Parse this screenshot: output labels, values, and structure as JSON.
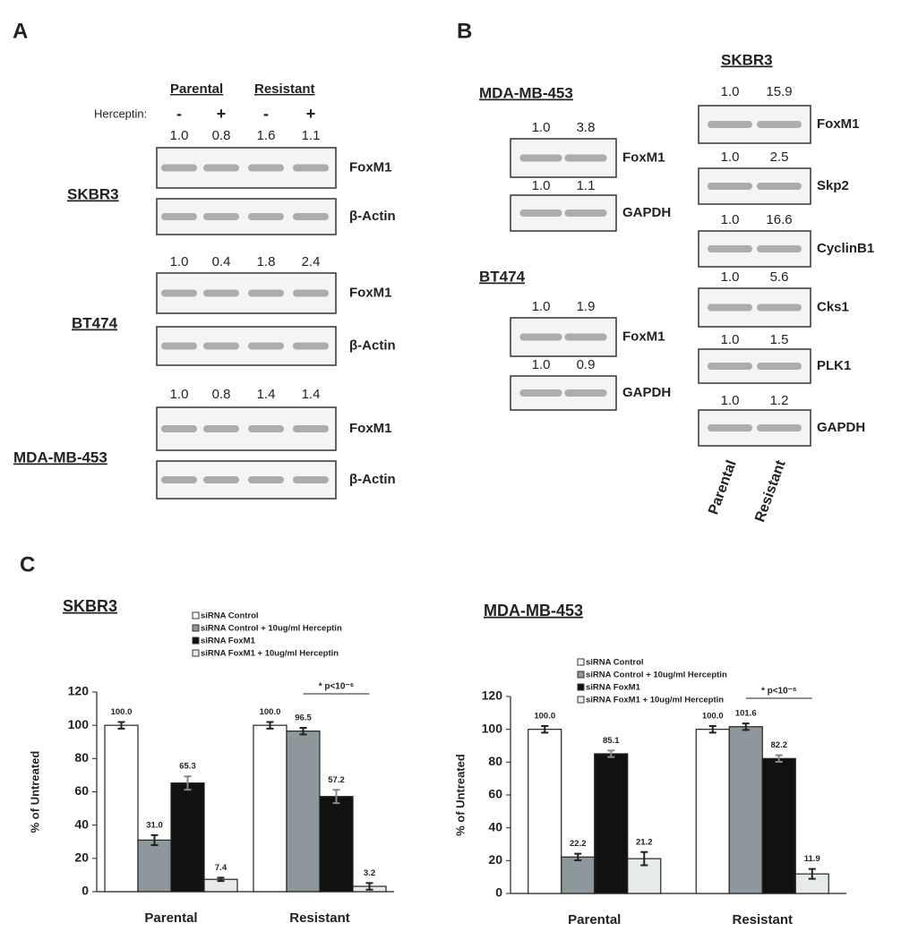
{
  "panel_a": {
    "label": "A",
    "group_labels": [
      "Parental",
      "Resistant"
    ],
    "treatment_label": "Herceptin:",
    "treatment_signs": [
      "-",
      "+",
      "-",
      "+"
    ],
    "cell_lines": [
      {
        "name": "SKBR3",
        "blots": [
          {
            "quantification": [
              "1.0",
              "0.8",
              "1.6",
              "1.1"
            ],
            "protein": "FoxM1"
          },
          {
            "protein": "β-Actin"
          }
        ]
      },
      {
        "name": "BT474",
        "blots": [
          {
            "quantification": [
              "1.0",
              "0.4",
              "1.8",
              "2.4"
            ],
            "protein": "FoxM1"
          },
          {
            "protein": "β-Actin"
          }
        ]
      },
      {
        "name": "MDA-MB-453",
        "blots": [
          {
            "quantification": [
              "1.0",
              "0.8",
              "1.4",
              "1.4"
            ],
            "protein": "FoxM1"
          },
          {
            "protein": "β-Actin"
          }
        ]
      }
    ]
  },
  "panel_b": {
    "label": "B",
    "cell_lines": [
      {
        "name": "MDA-MB-453",
        "blots": [
          {
            "quantification": [
              "1.0",
              "3.8"
            ],
            "protein": "FoxM1"
          },
          {
            "quantification": [
              "1.0",
              "1.1"
            ],
            "protein": "GAPDH"
          }
        ]
      },
      {
        "name": "BT474",
        "blots": [
          {
            "quantification": [
              "1.0",
              "1.9"
            ],
            "protein": "FoxM1"
          },
          {
            "quantification": [
              "1.0",
              "0.9"
            ],
            "protein": "GAPDH"
          }
        ]
      },
      {
        "name": "SKBR3",
        "blots": [
          {
            "quantification": [
              "1.0",
              "15.9"
            ],
            "protein": "FoxM1"
          },
          {
            "quantification": [
              "1.0",
              "2.5"
            ],
            "protein": "Skp2"
          },
          {
            "quantification": [
              "1.0",
              "16.6"
            ],
            "protein": "CyclinB1"
          },
          {
            "quantification": [
              "1.0",
              "5.6"
            ],
            "protein": "Cks1"
          },
          {
            "quantification": [
              "1.0",
              "1.5"
            ],
            "protein": "PLK1"
          },
          {
            "quantification": [
              "1.0",
              "1.2"
            ],
            "protein": "GAPDH"
          }
        ]
      }
    ],
    "lane_labels": [
      "Parental",
      "Resistant"
    ]
  },
  "panel_c": {
    "label": "C"
  },
  "chart_data": [
    {
      "type": "bar",
      "title": "SKBR3",
      "y_label": "% of Untreated",
      "categories": [
        "Parental",
        "Resistant"
      ],
      "ylim": [
        0,
        120
      ],
      "yticks": [
        0,
        20,
        40,
        60,
        80,
        100,
        120
      ],
      "annotation": "* p<10⁻⁶",
      "series": [
        {
          "name": "siRNA Control",
          "color": "#ffffff",
          "values": [
            100.0,
            100.0
          ],
          "errors": [
            2,
            2
          ],
          "value_labels": [
            "100.0",
            "100.0"
          ]
        },
        {
          "name": "siRNA Control + 10ug/ml Herceptin",
          "color": "#8e979c",
          "values": [
            31.0,
            96.5
          ],
          "errors": [
            3,
            2
          ],
          "value_labels": [
            "31.0",
            "96.5"
          ]
        },
        {
          "name": "siRNA FoxM1",
          "color": "#111111",
          "values": [
            65.3,
            57.2
          ],
          "errors": [
            4,
            4
          ],
          "value_labels": [
            "65.3",
            "57.2"
          ]
        },
        {
          "name": "siRNA FoxM1 + 10ug/ml Herceptin",
          "color": "#e6eaea",
          "values": [
            7.4,
            3.2
          ],
          "errors": [
            1,
            2
          ],
          "value_labels": [
            "7.4",
            "3.2"
          ]
        }
      ]
    },
    {
      "type": "bar",
      "title": "MDA-MB-453",
      "y_label": "% of Untreated",
      "categories": [
        "Parental",
        "Resistant"
      ],
      "ylim": [
        0,
        120
      ],
      "yticks": [
        0,
        20,
        40,
        60,
        80,
        100,
        120
      ],
      "annotation": "* p<10⁻⁶",
      "series": [
        {
          "name": "siRNA Control",
          "color": "#ffffff",
          "values": [
            100.0,
            100.0
          ],
          "errors": [
            2,
            2
          ],
          "value_labels": [
            "100.0",
            "100.0"
          ]
        },
        {
          "name": "siRNA Control + 10ug/ml Herceptin",
          "color": "#8e979c",
          "values": [
            22.2,
            101.6
          ],
          "errors": [
            2,
            2
          ],
          "value_labels": [
            "22.2",
            "101.6"
          ]
        },
        {
          "name": "siRNA FoxM1",
          "color": "#111111",
          "values": [
            85.1,
            82.2
          ],
          "errors": [
            2,
            2
          ],
          "value_labels": [
            "85.1",
            "82.2"
          ]
        },
        {
          "name": "siRNA FoxM1 + 10ug/ml Herceptin",
          "color": "#e6eaea",
          "values": [
            21.2,
            11.9
          ],
          "errors": [
            4,
            3
          ],
          "value_labels": [
            "21.2",
            "11.9"
          ]
        }
      ]
    }
  ]
}
